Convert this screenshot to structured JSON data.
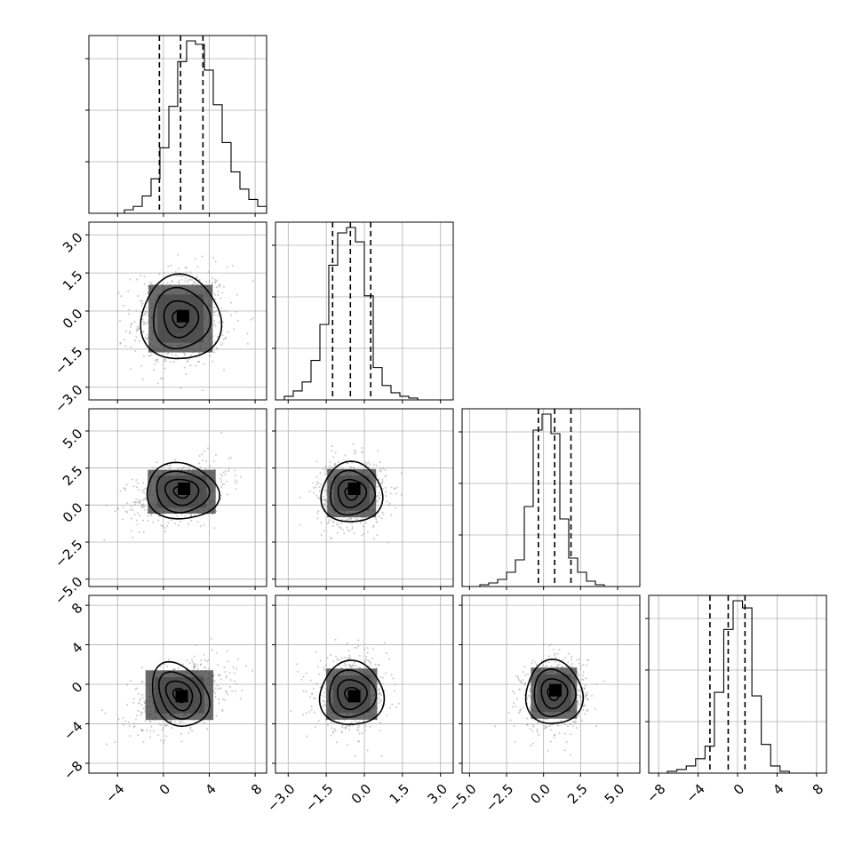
{
  "chart_data": {
    "type": "corner",
    "grid": true,
    "variables": [
      {
        "range": [
          -6.5,
          9
        ],
        "ticks": [
          -4,
          0,
          4,
          8
        ],
        "tick_labels": [
          "−4",
          "0",
          "4",
          "8"
        ],
        "hist": {
          "edges_start": -6.5,
          "bin_width": 0.775,
          "counts": [
            0,
            0,
            0,
            0,
            2,
            4,
            10,
            20,
            38,
            62,
            88,
            100,
            98,
            83,
            63,
            41,
            24,
            14,
            8,
            4,
            1
          ]
        },
        "quantiles": [
          -0.35,
          1.5,
          3.45
        ]
      },
      {
        "range": [
          -3.5,
          3.5
        ],
        "ticks": [
          -3.0,
          -1.5,
          0.0,
          1.5,
          3.0
        ],
        "tick_labels": [
          "−3.0",
          "−1.5",
          "0.0",
          "1.5",
          "3.0"
        ],
        "hist": {
          "edges_start": -3.5,
          "bin_width": 0.35,
          "counts": [
            0,
            2,
            5,
            10,
            22,
            42,
            75,
            93,
            96,
            88,
            58,
            18,
            8,
            4,
            2,
            1,
            0,
            0,
            0,
            0
          ]
        },
        "quantiles": [
          -1.25,
          -0.55,
          0.25
        ]
      },
      {
        "range": [
          -5.5,
          6.5
        ],
        "ticks": [
          -5.0,
          -2.5,
          0.0,
          2.5,
          5.0
        ],
        "tick_labels": [
          "−5.0",
          "−2.5",
          "0.0",
          "2.5",
          "5.0"
        ],
        "hist": {
          "edges_start": -5.5,
          "bin_width": 0.6,
          "counts": [
            0,
            0,
            1,
            2,
            4,
            8,
            15,
            45,
            88,
            97,
            86,
            38,
            16,
            8,
            3,
            1,
            0,
            0,
            0,
            0
          ]
        },
        "quantiles": [
          -0.35,
          0.75,
          1.85
        ]
      },
      {
        "range": [
          -9,
          9
        ],
        "ticks": [
          -8,
          -4,
          0,
          4,
          8
        ],
        "tick_labels": [
          "−8",
          "−4",
          "0",
          "4",
          "8"
        ],
        "hist": {
          "edges_start": -9,
          "bin_width": 0.95,
          "counts": [
            0,
            0,
            1,
            2,
            4,
            8,
            15,
            45,
            80,
            96,
            92,
            43,
            16,
            4,
            1,
            0,
            0,
            0,
            0
          ]
        },
        "quantiles": [
          -2.8,
          -0.95,
          0.75
        ]
      }
    ],
    "pairs": [
      {
        "row": 1,
        "col": 0,
        "center": [
          1.5,
          -0.3
        ],
        "contour_sigma": [
          2.0,
          0.95
        ],
        "cov_xy": 0.05,
        "contour_levels": [
          0.35,
          0.75,
          1.25,
          1.75
        ],
        "peak": [
          1.7,
          -0.2
        ]
      },
      {
        "row": 2,
        "col": 0,
        "center": [
          1.6,
          0.9
        ],
        "contour_sigma": [
          2.0,
          1.0
        ],
        "cov_xy": 0.35,
        "contour_levels": [
          0.4,
          0.85,
          1.35,
          1.85
        ],
        "peak": [
          1.8,
          1.1
        ]
      },
      {
        "row": 2,
        "col": 1,
        "center": [
          -0.5,
          0.8
        ],
        "contour_sigma": [
          0.65,
          1.1
        ],
        "cov_xy": 0.0,
        "contour_levels": [
          0.4,
          0.85,
          1.35,
          1.85
        ],
        "peak": [
          -0.4,
          1.1
        ]
      },
      {
        "row": 3,
        "col": 0,
        "center": [
          1.4,
          -1.1
        ],
        "contour_sigma": [
          2.0,
          1.7
        ],
        "cov_xy": 0.4,
        "contour_levels": [
          0.4,
          0.85,
          1.35,
          1.85
        ],
        "peak": [
          1.6,
          -1.2
        ]
      },
      {
        "row": 3,
        "col": 1,
        "center": [
          -0.5,
          -1.0
        ],
        "contour_sigma": [
          0.68,
          1.75
        ],
        "cov_xy": 0.0,
        "contour_levels": [
          0.4,
          0.85,
          1.35,
          1.85
        ],
        "peak": [
          -0.4,
          -1.2
        ]
      },
      {
        "row": 3,
        "col": 2,
        "center": [
          0.7,
          -0.9
        ],
        "contour_sigma": [
          1.05,
          1.75
        ],
        "cov_xy": 0.1,
        "contour_levels": [
          0.4,
          0.85,
          1.35,
          1.85
        ],
        "peak": [
          0.8,
          -0.6
        ]
      }
    ]
  }
}
